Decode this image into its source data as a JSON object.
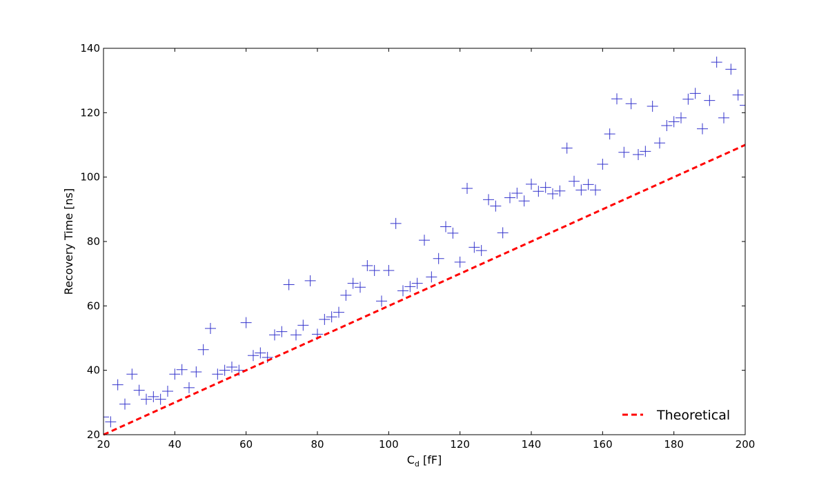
{
  "chart_data": {
    "type": "scatter",
    "title": "",
    "xlabel": {
      "main": "C",
      "sub": "d",
      "unit": " [fF]"
    },
    "ylabel": "Recovery Time [ns]",
    "xlim": [
      20,
      200
    ],
    "ylim": [
      20,
      140
    ],
    "xticks": [
      "20",
      "40",
      "60",
      "80",
      "100",
      "120",
      "140",
      "160",
      "180",
      "200"
    ],
    "yticks": [
      "20",
      "40",
      "60",
      "80",
      "100",
      "120",
      "140"
    ],
    "grid": false,
    "legend": {
      "placement": "bottom-right",
      "label": "Theoretical"
    },
    "colors": {
      "measured": "#3333cc",
      "theoretical": "#ff0000"
    },
    "series": [
      {
        "kind": "markers",
        "marker": "plus",
        "points": [
          [
            20,
            25.5
          ],
          [
            22,
            24
          ],
          [
            24,
            35.5
          ],
          [
            26,
            29.5
          ],
          [
            28,
            38.8
          ],
          [
            30,
            33.8
          ],
          [
            32,
            31
          ],
          [
            34,
            31.8
          ],
          [
            36,
            31
          ],
          [
            38,
            33.5
          ],
          [
            40,
            38.8
          ],
          [
            42,
            40.2
          ],
          [
            44,
            34.6
          ],
          [
            46,
            39.5
          ],
          [
            48,
            46.4
          ],
          [
            50,
            53
          ],
          [
            52,
            38.8
          ],
          [
            54,
            40
          ],
          [
            56,
            41
          ],
          [
            58,
            40
          ],
          [
            60,
            54.8
          ],
          [
            62,
            44.6
          ],
          [
            64,
            45.4
          ],
          [
            66,
            44
          ],
          [
            68,
            51
          ],
          [
            70,
            52
          ],
          [
            72,
            66.6
          ],
          [
            74,
            51
          ],
          [
            76,
            54
          ],
          [
            78,
            67.8
          ],
          [
            80,
            51.2
          ],
          [
            82,
            55.8
          ],
          [
            84,
            56.6
          ],
          [
            86,
            58
          ],
          [
            88,
            63.3
          ],
          [
            90,
            67
          ],
          [
            92,
            65.8
          ],
          [
            94,
            72.5
          ],
          [
            96,
            71
          ],
          [
            98,
            61.5
          ],
          [
            100,
            71
          ],
          [
            102,
            85.6
          ],
          [
            104,
            64.7
          ],
          [
            106,
            66
          ],
          [
            108,
            67
          ],
          [
            110,
            80.4
          ],
          [
            112,
            69
          ],
          [
            114,
            74.7
          ],
          [
            116,
            84.6
          ],
          [
            118,
            82.6
          ],
          [
            120,
            73.6
          ],
          [
            122,
            96.5
          ],
          [
            124,
            78.2
          ],
          [
            126,
            77.2
          ],
          [
            128,
            93
          ],
          [
            130,
            91
          ],
          [
            132,
            82.7
          ],
          [
            134,
            93.6
          ],
          [
            136,
            95
          ],
          [
            138,
            92.6
          ],
          [
            140,
            97.8
          ],
          [
            142,
            95.6
          ],
          [
            144,
            96.8
          ],
          [
            146,
            94.8
          ],
          [
            148,
            95.7
          ],
          [
            150,
            109
          ],
          [
            152,
            98.7
          ],
          [
            154,
            96
          ],
          [
            156,
            97.7
          ],
          [
            158,
            96
          ],
          [
            160,
            104
          ],
          [
            162,
            113.4
          ],
          [
            164,
            124.3
          ],
          [
            166,
            107.7
          ],
          [
            168,
            122.8
          ],
          [
            170,
            107
          ],
          [
            172,
            108
          ],
          [
            174,
            122
          ],
          [
            176,
            110.6
          ],
          [
            178,
            116
          ],
          [
            180,
            117.2
          ],
          [
            182,
            118.4
          ],
          [
            184,
            124.2
          ],
          [
            186,
            126
          ],
          [
            188,
            115
          ],
          [
            190,
            123.8
          ],
          [
            192,
            135.7
          ],
          [
            194,
            118.4
          ],
          [
            196,
            133.5
          ],
          [
            198,
            125.5
          ],
          [
            200,
            122.3
          ]
        ]
      },
      {
        "kind": "line",
        "style": "dashed",
        "name": "Theoretical",
        "points": [
          [
            20,
            20
          ],
          [
            200,
            110
          ]
        ]
      }
    ]
  }
}
